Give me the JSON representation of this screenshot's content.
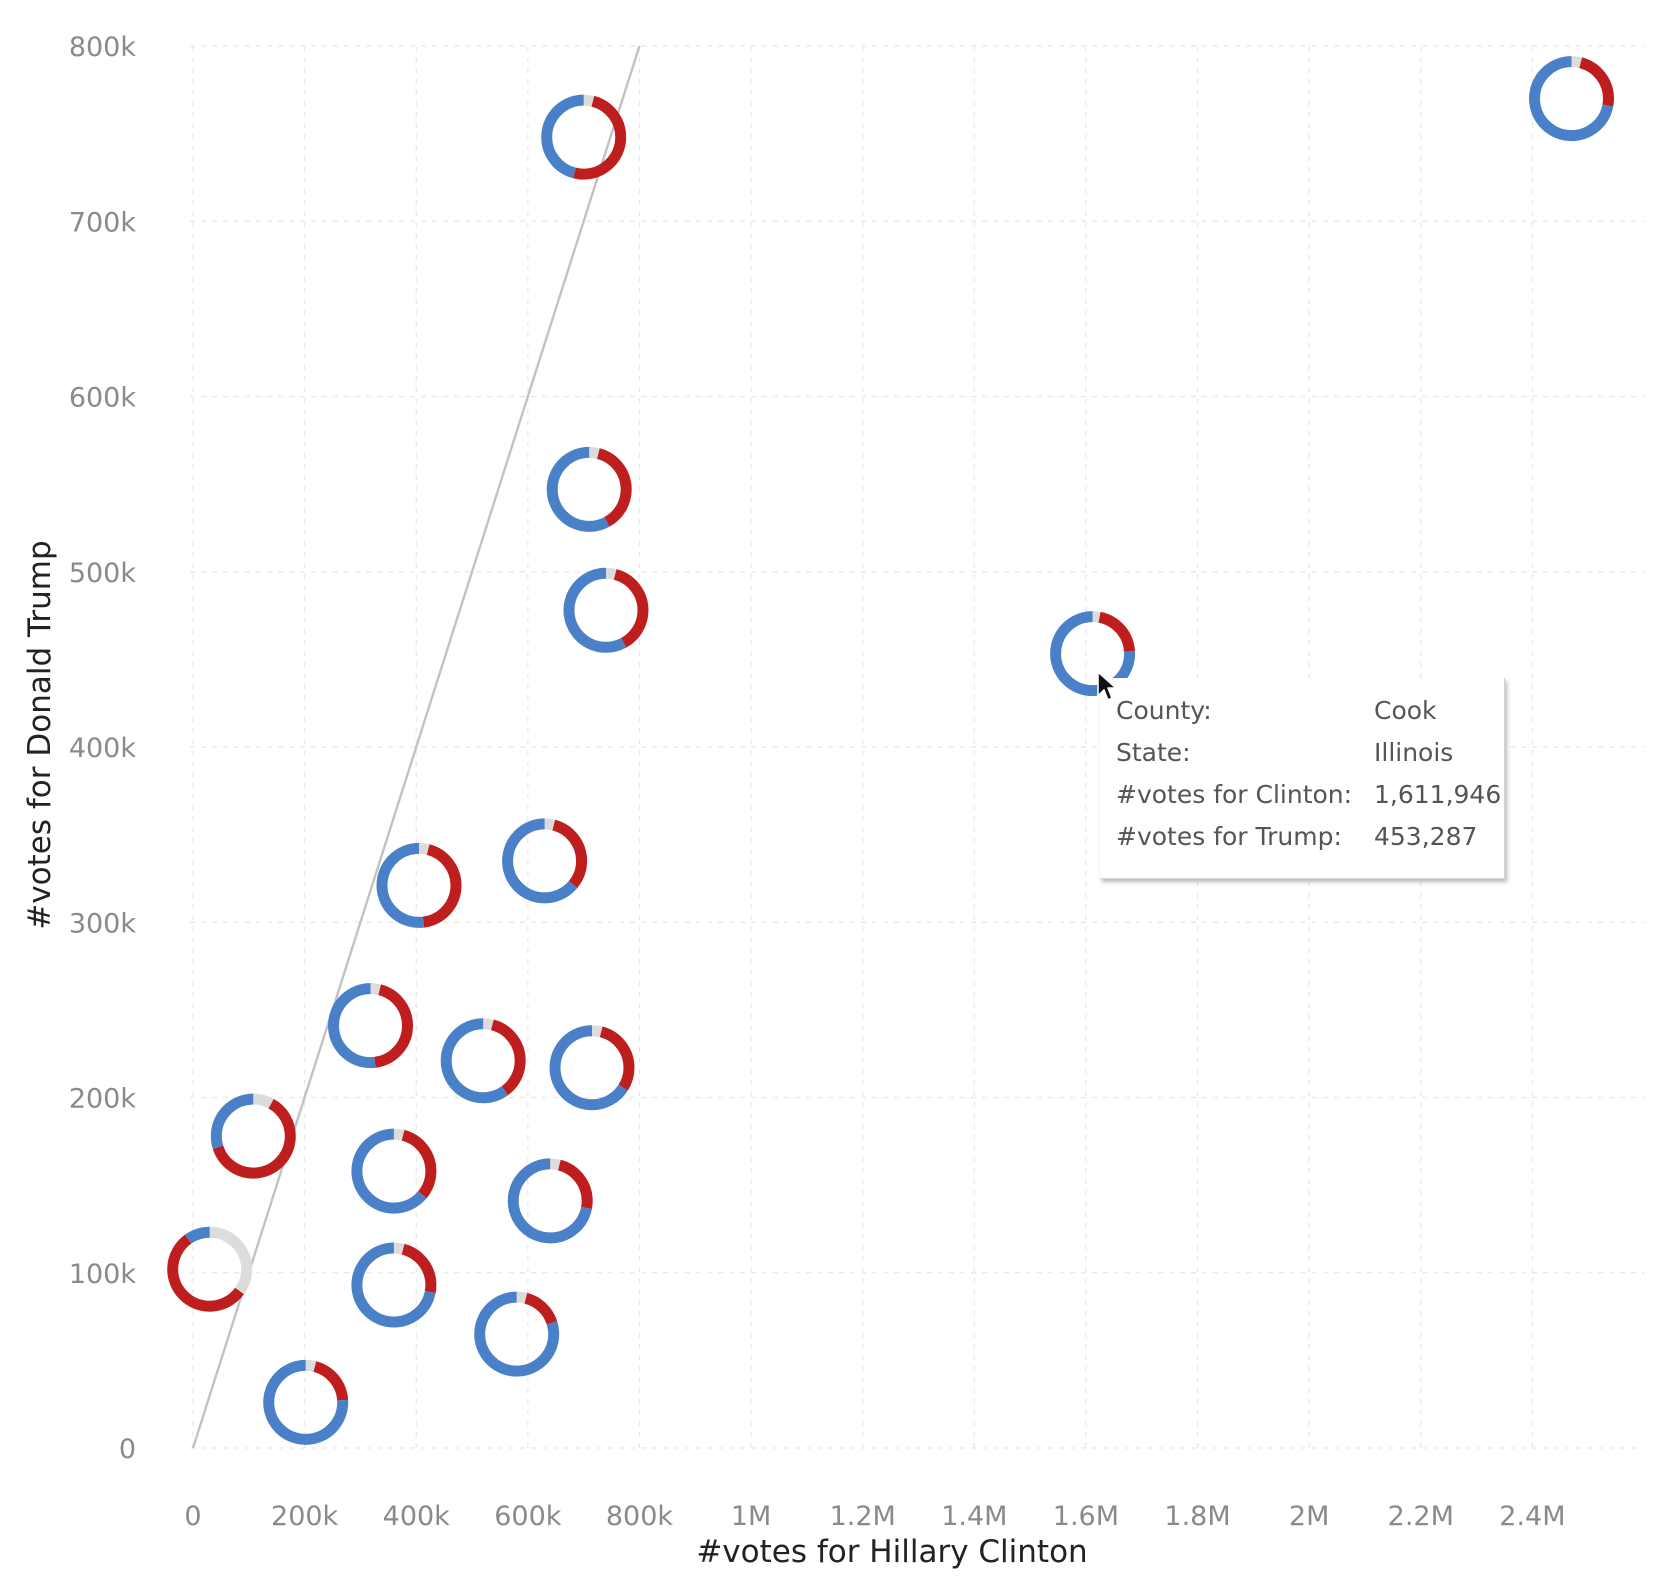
{
  "colors": {
    "clinton": "#4a80c8",
    "trump": "#bf1e1e",
    "other": "#dcdcdc"
  },
  "chart_data": {
    "type": "scatter",
    "marker": "donut",
    "xlabel": "#votes for Hillary Clinton",
    "ylabel": "#votes for Donald Trump",
    "xlim": [
      0,
      2600000
    ],
    "ylim": [
      0,
      800000
    ],
    "x_ticks": [
      {
        "value": 0,
        "label": "0"
      },
      {
        "value": 200000,
        "label": "200k"
      },
      {
        "value": 400000,
        "label": "400k"
      },
      {
        "value": 600000,
        "label": "600k"
      },
      {
        "value": 800000,
        "label": "800k"
      },
      {
        "value": 1000000,
        "label": "1M"
      },
      {
        "value": 1200000,
        "label": "1.2M"
      },
      {
        "value": 1400000,
        "label": "1.4M"
      },
      {
        "value": 1600000,
        "label": "1.6M"
      },
      {
        "value": 1800000,
        "label": "1.8M"
      },
      {
        "value": 2000000,
        "label": "2M"
      },
      {
        "value": 2200000,
        "label": "2.2M"
      },
      {
        "value": 2400000,
        "label": "2.4M"
      }
    ],
    "y_ticks": [
      {
        "value": 0,
        "label": "0"
      },
      {
        "value": 100000,
        "label": "100k"
      },
      {
        "value": 200000,
        "label": "200k"
      },
      {
        "value": 300000,
        "label": "300k"
      },
      {
        "value": 400000,
        "label": "400k"
      },
      {
        "value": 500000,
        "label": "500k"
      },
      {
        "value": 600000,
        "label": "600k"
      },
      {
        "value": 700000,
        "label": "700k"
      },
      {
        "value": 800000,
        "label": "800k"
      }
    ],
    "grid": true,
    "reference_line": {
      "x": [
        0,
        800000
      ],
      "y": [
        0,
        800000
      ]
    },
    "points": [
      {
        "x": 2470000,
        "y": 770000,
        "clinton": 0.72,
        "trump": 0.24,
        "other": 0.04
      },
      {
        "x": 700000,
        "y": 748000,
        "clinton": 0.46,
        "trump": 0.5,
        "other": 0.04
      },
      {
        "x": 710000,
        "y": 547000,
        "clinton": 0.58,
        "trump": 0.38,
        "other": 0.04
      },
      {
        "x": 740000,
        "y": 478000,
        "clinton": 0.58,
        "trump": 0.38,
        "other": 0.04
      },
      {
        "x": 1611946,
        "y": 453287,
        "clinton": 0.76,
        "trump": 0.21,
        "other": 0.03
      },
      {
        "x": 630000,
        "y": 335000,
        "clinton": 0.64,
        "trump": 0.32,
        "other": 0.04
      },
      {
        "x": 405000,
        "y": 321000,
        "clinton": 0.52,
        "trump": 0.44,
        "other": 0.04
      },
      {
        "x": 318000,
        "y": 241000,
        "clinton": 0.52,
        "trump": 0.44,
        "other": 0.04
      },
      {
        "x": 520000,
        "y": 221000,
        "clinton": 0.6,
        "trump": 0.36,
        "other": 0.04
      },
      {
        "x": 715000,
        "y": 217000,
        "clinton": 0.66,
        "trump": 0.3,
        "other": 0.04
      },
      {
        "x": 108000,
        "y": 178000,
        "clinton": 0.3,
        "trump": 0.62,
        "other": 0.08
      },
      {
        "x": 360000,
        "y": 158000,
        "clinton": 0.64,
        "trump": 0.32,
        "other": 0.04
      },
      {
        "x": 640000,
        "y": 141000,
        "clinton": 0.72,
        "trump": 0.24,
        "other": 0.04
      },
      {
        "x": 30000,
        "y": 102000,
        "clinton": 0.1,
        "trump": 0.55,
        "other": 0.35
      },
      {
        "x": 360000,
        "y": 93000,
        "clinton": 0.72,
        "trump": 0.24,
        "other": 0.04
      },
      {
        "x": 580000,
        "y": 65000,
        "clinton": 0.8,
        "trump": 0.16,
        "other": 0.04
      },
      {
        "x": 202000,
        "y": 26000,
        "clinton": 0.76,
        "trump": 0.2,
        "other": 0.04
      }
    ]
  },
  "tooltip": {
    "rows": [
      {
        "label": "County:",
        "value": "Cook"
      },
      {
        "label": "State:",
        "value": "Illinois"
      },
      {
        "label": "#votes for Clinton:",
        "value": "1,611,946"
      },
      {
        "label": "#votes for Trump:",
        "value": "453,287"
      }
    ]
  }
}
